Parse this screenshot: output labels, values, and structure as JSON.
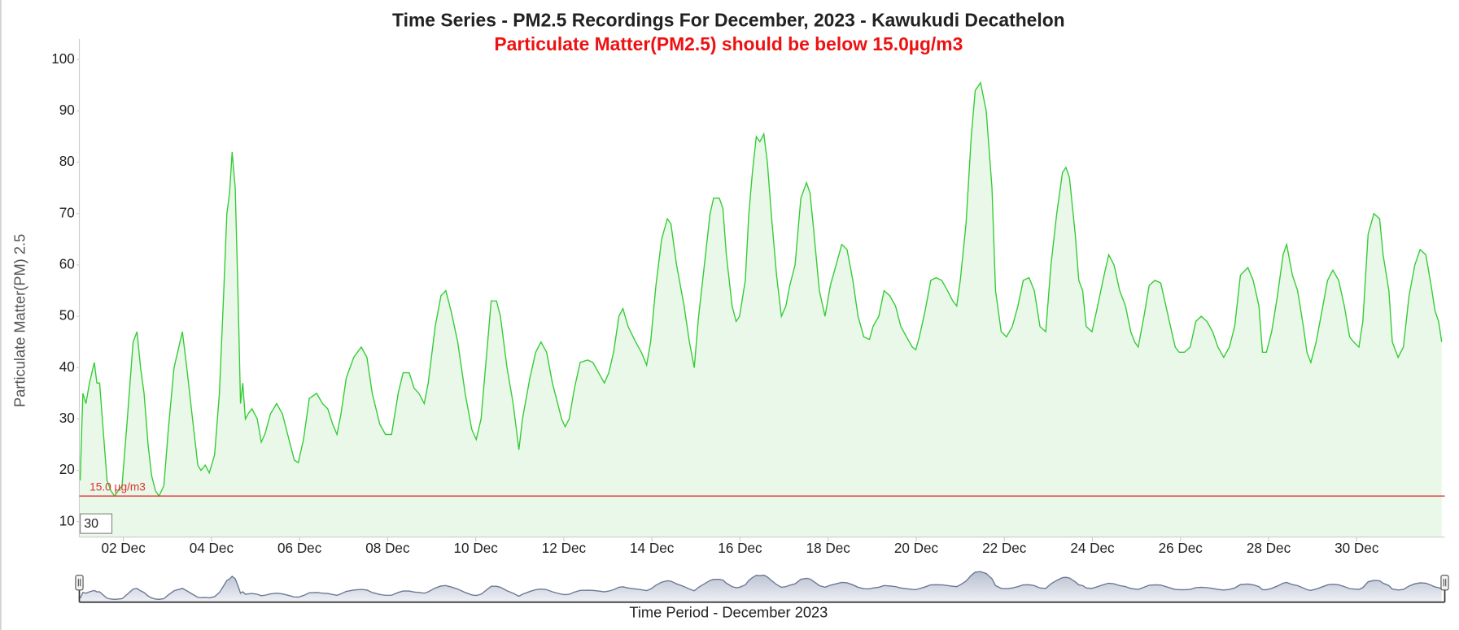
{
  "chart_data": {
    "type": "area",
    "title": "Time Series - PM2.5 Recordings For December, 2023 - Kawukudi Decathelon",
    "subtitle": "Particulate Matter(PM2.5) should be below 15.0µg/m3",
    "y_label": "Particulate Matter(PM) 2.5",
    "x_label": "Time Period - December 2023",
    "threshold": 15.0,
    "threshold_label": "15.0 µg/m3",
    "threshold_color": "#e03030",
    "range_input": "30",
    "color": "#33cc33",
    "fill_color": "#e9f8e9",
    "xlim": [
      1,
      32
    ],
    "ylim": [
      7,
      104
    ],
    "yticks": [
      10,
      20,
      30,
      40,
      50,
      60,
      70,
      80,
      90,
      100
    ],
    "xticks": [
      {
        "value": 2,
        "label": "02 Dec"
      },
      {
        "value": 4,
        "label": "04 Dec"
      },
      {
        "value": 6,
        "label": "06 Dec"
      },
      {
        "value": 8,
        "label": "08 Dec"
      },
      {
        "value": 10,
        "label": "10 Dec"
      },
      {
        "value": 12,
        "label": "12 Dec"
      },
      {
        "value": 14,
        "label": "14 Dec"
      },
      {
        "value": 16,
        "label": "16 Dec"
      },
      {
        "value": 18,
        "label": "18 Dec"
      },
      {
        "value": 20,
        "label": "20 Dec"
      },
      {
        "value": 22,
        "label": "22 Dec"
      },
      {
        "value": 24,
        "label": "24 Dec"
      },
      {
        "value": 26,
        "label": "26 Dec"
      },
      {
        "value": 28,
        "label": "28 Dec"
      },
      {
        "value": 30,
        "label": "30 Dec"
      }
    ],
    "grid": false,
    "x": [
      1.02,
      1.08,
      1.15,
      1.23,
      1.34,
      1.4,
      1.46,
      1.55,
      1.63,
      1.72,
      1.8,
      1.88,
      1.97,
      2.09,
      2.22,
      2.31,
      2.39,
      2.47,
      2.56,
      2.64,
      2.73,
      2.81,
      2.92,
      3.02,
      3.15,
      3.34,
      3.44,
      3.57,
      3.69,
      3.76,
      3.86,
      3.95,
      4.07,
      4.18,
      4.28,
      4.35,
      4.41,
      4.47,
      4.54,
      4.6,
      4.66,
      4.71,
      4.77,
      4.83,
      4.92,
      4.98,
      5.04,
      5.13,
      5.21,
      5.34,
      5.48,
      5.61,
      5.76,
      5.88,
      5.97,
      6.09,
      6.22,
      6.39,
      6.52,
      6.64,
      6.75,
      6.85,
      6.94,
      7.06,
      7.23,
      7.4,
      7.53,
      7.65,
      7.82,
      7.95,
      8.09,
      8.24,
      8.35,
      8.49,
      8.6,
      8.71,
      8.83,
      8.92,
      9.08,
      9.21,
      9.32,
      9.44,
      9.59,
      9.76,
      9.91,
      10.01,
      10.12,
      10.24,
      10.35,
      10.47,
      10.56,
      10.71,
      10.85,
      10.98,
      11.06,
      11.23,
      11.36,
      11.48,
      11.61,
      11.74,
      11.86,
      11.95,
      12.03,
      12.12,
      12.24,
      12.37,
      12.54,
      12.66,
      12.79,
      12.92,
      13.02,
      13.13,
      13.25,
      13.34,
      13.46,
      13.63,
      13.76,
      13.88,
      13.97,
      14.09,
      14.22,
      14.35,
      14.43,
      14.56,
      14.73,
      14.85,
      14.96,
      15.06,
      15.19,
      15.32,
      15.4,
      15.53,
      15.61,
      15.69,
      15.82,
      15.91,
      15.99,
      16.12,
      16.2,
      16.28,
      16.37,
      16.45,
      16.54,
      16.62,
      16.71,
      16.83,
      16.94,
      17.04,
      17.13,
      17.25,
      17.38,
      17.51,
      17.59,
      17.67,
      17.8,
      17.93,
      18.05,
      18.18,
      18.31,
      18.43,
      18.56,
      18.68,
      18.81,
      18.94,
      19.02,
      19.15,
      19.27,
      19.4,
      19.53,
      19.65,
      19.78,
      19.91,
      19.99,
      20.07,
      20.2,
      20.33,
      20.45,
      20.58,
      20.71,
      20.83,
      20.92,
      21.0,
      21.13,
      21.25,
      21.34,
      21.46,
      21.59,
      21.72,
      21.8,
      21.93,
      22.05,
      22.18,
      22.31,
      22.43,
      22.56,
      22.68,
      22.81,
      22.94,
      23.06,
      23.19,
      23.32,
      23.4,
      23.48,
      23.61,
      23.69,
      23.78,
      23.86,
      23.99,
      24.12,
      24.24,
      24.37,
      24.49,
      24.62,
      24.75,
      24.87,
      24.96,
      25.04,
      25.17,
      25.29,
      25.42,
      25.55,
      25.67,
      25.8,
      25.88,
      25.97,
      26.09,
      26.22,
      26.35,
      26.47,
      26.6,
      26.73,
      26.85,
      26.98,
      27.11,
      27.23,
      27.36,
      27.53,
      27.65,
      27.78,
      27.86,
      27.95,
      28.07,
      28.2,
      28.33,
      28.41,
      28.54,
      28.66,
      28.79,
      28.87,
      28.96,
      29.08,
      29.21,
      29.34,
      29.46,
      29.59,
      29.72,
      29.84,
      29.93,
      30.05,
      30.14,
      30.26,
      30.39,
      30.52,
      30.6,
      30.73,
      30.81,
      30.94,
      31.06,
      31.19,
      31.32,
      31.44,
      31.57,
      31.69,
      31.78,
      31.86,
      31.93
    ],
    "values": [
      18,
      35,
      33,
      37,
      41,
      37,
      37,
      27,
      18,
      16,
      15,
      16,
      17,
      30,
      45,
      47,
      40,
      35,
      25,
      19,
      16,
      15,
      17,
      28,
      40,
      47,
      40,
      30,
      21,
      20,
      21,
      19.5,
      23,
      35,
      55,
      70,
      74,
      82,
      75,
      55,
      33,
      37,
      30,
      31,
      32,
      31,
      30,
      25.5,
      27,
      31,
      33,
      31,
      26,
      22,
      21.5,
      26,
      34,
      35,
      33,
      32,
      29,
      27,
      31,
      38,
      42,
      44,
      42,
      35,
      29,
      27,
      27,
      35,
      39,
      39,
      36,
      35,
      33,
      37,
      48,
      54,
      55,
      51,
      45,
      35,
      28,
      26,
      30,
      42,
      53,
      53,
      50,
      40,
      33,
      24,
      30,
      38,
      43,
      45,
      43,
      37,
      33,
      30,
      28.5,
      30,
      36,
      41,
      41.5,
      41,
      39,
      37,
      39,
      43,
      50,
      51.5,
      48,
      45,
      43,
      40.5,
      45,
      56,
      65,
      69,
      68,
      60,
      52,
      45,
      40,
      50,
      60,
      70,
      73,
      73,
      71,
      62,
      52,
      49,
      50,
      57,
      70,
      78,
      85,
      84,
      85.5,
      80,
      70,
      58,
      50,
      52,
      56,
      60,
      73,
      76,
      74,
      67,
      55,
      50,
      56,
      60,
      64,
      63,
      57,
      50,
      46,
      45.5,
      48,
      50,
      55,
      54,
      52,
      48,
      46,
      44,
      43.5,
      46,
      51,
      57,
      57.5,
      57,
      55,
      53,
      52,
      57,
      68,
      85,
      94,
      95.5,
      90,
      75,
      55,
      47,
      46,
      48,
      52,
      57,
      57.5,
      55,
      48,
      47,
      60,
      70,
      78,
      79,
      77,
      66,
      57,
      55,
      48,
      47,
      52,
      57,
      62,
      60,
      55,
      52,
      47,
      45,
      44,
      50,
      56,
      57,
      56.5,
      52,
      47,
      44,
      43,
      43,
      44,
      49,
      50,
      49,
      47,
      44,
      42,
      44,
      48,
      58,
      59.5,
      57,
      52,
      43,
      43,
      47,
      54,
      62,
      64,
      58,
      55,
      48,
      43,
      41,
      45,
      51,
      57,
      59,
      57,
      52,
      46,
      45,
      44,
      49,
      66,
      70,
      69,
      62,
      55,
      45,
      42,
      44,
      54,
      60,
      63,
      62,
      56,
      51,
      49,
      45
    ]
  }
}
